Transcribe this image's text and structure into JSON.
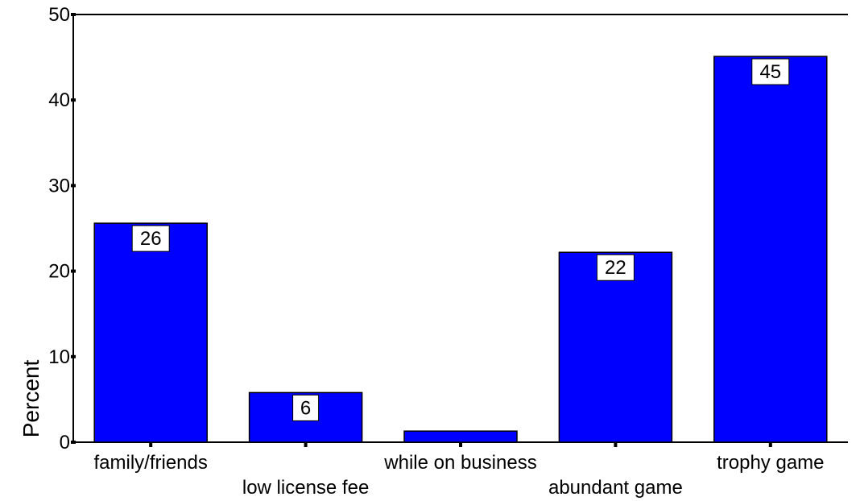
{
  "chart_data": {
    "type": "bar",
    "title": "",
    "xlabel": "",
    "ylabel": "Percent",
    "ylim": [
      0,
      50
    ],
    "yticks": [
      0,
      10,
      20,
      30,
      40,
      50
    ],
    "categories": [
      "family/friends",
      "low license fee",
      "while on business",
      "abundant game",
      "trophy game"
    ],
    "values": [
      25.6,
      5.8,
      1.3,
      22.2,
      45.1
    ],
    "data_labels": [
      "26",
      "6",
      "",
      "22",
      "45"
    ],
    "grid": false,
    "legend": "none",
    "colors": {
      "bar": "#0000ff",
      "bar_edge": "#000000",
      "axis": "#000000"
    }
  }
}
